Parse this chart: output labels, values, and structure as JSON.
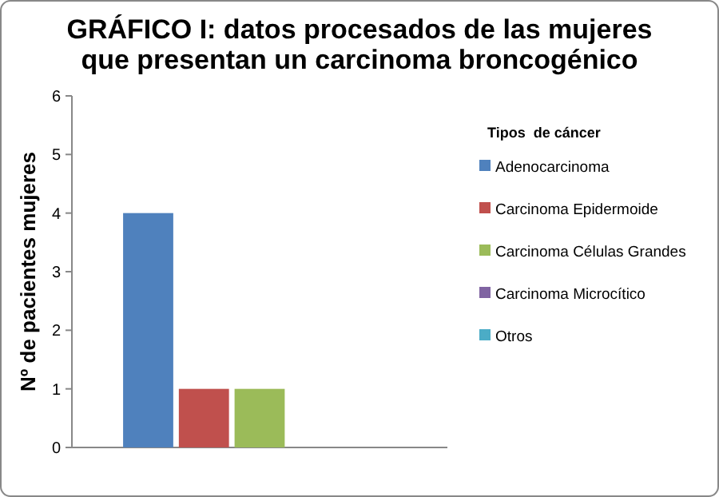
{
  "chart_data": {
    "type": "bar",
    "title": "GRÁFICO I: datos procesados de las mujeres que presentan un carcinoma broncogénico",
    "ylabel": "Nº de pacientes mujeres",
    "legend_title": "Tipos  de cáncer",
    "categories": [
      null
    ],
    "series": [
      {
        "name": "Adenocarcinoma",
        "color": "#4f81bd",
        "values": [
          4
        ]
      },
      {
        "name": "Carcinoma Epidermoide",
        "color": "#c0504d",
        "values": [
          1
        ]
      },
      {
        "name": "Carcinoma Células Grandes",
        "color": "#9bbb59",
        "values": [
          1
        ]
      },
      {
        "name": "Carcinoma Microcítico",
        "color": "#8064a2",
        "values": [
          0
        ]
      },
      {
        "name": "Otros",
        "color": "#4bacc6",
        "values": [
          0
        ]
      }
    ],
    "ylim": [
      0,
      6
    ],
    "yticks": [
      0,
      1,
      2,
      3,
      4,
      5,
      6
    ],
    "legend": "right"
  }
}
